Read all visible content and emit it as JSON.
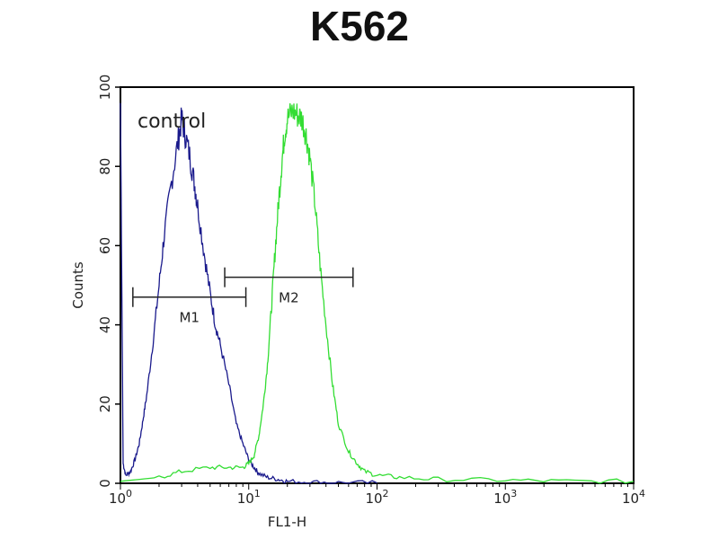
{
  "chart_data": {
    "type": "line",
    "title": "K562",
    "xlabel": "FL1-H",
    "ylabel": "Counts",
    "x_scale": "log",
    "xlim": [
      1,
      10000
    ],
    "ylim": [
      0,
      100
    ],
    "y_ticks": [
      0,
      20,
      40,
      60,
      80,
      100
    ],
    "y_tick_labels": [
      "0",
      "20",
      "40",
      "60",
      "80",
      "100"
    ],
    "x_ticks": [
      {
        "value": 1,
        "base": "10",
        "exp": "0"
      },
      {
        "value": 10,
        "base": "10",
        "exp": "1"
      },
      {
        "value": 100,
        "base": "10",
        "exp": "2"
      },
      {
        "value": 1000,
        "base": "10",
        "exp": "3"
      },
      {
        "value": 10000,
        "base": "10",
        "exp": "4"
      }
    ],
    "annotations": [
      {
        "text": "control"
      }
    ],
    "grid": false,
    "series": [
      {
        "color": "#1a1a8c",
        "x": [
          1.0,
          1.05,
          1.1,
          1.2,
          1.3,
          1.4,
          1.5,
          1.6,
          1.8,
          2.0,
          2.2,
          2.5,
          2.8,
          3.0,
          3.2,
          3.5,
          3.8,
          4.0,
          4.5,
          5.0,
          5.5,
          6.0,
          7.0,
          8.0,
          9.0,
          10.0,
          11.0,
          12.0,
          14.0,
          17.0,
          20.0,
          30.0,
          50.0,
          100.0
        ],
        "values": [
          96,
          5,
          2,
          3,
          6,
          10,
          16,
          22,
          36,
          50,
          63,
          76,
          86,
          92,
          88,
          82,
          75,
          70,
          58,
          48,
          40,
          35,
          25,
          15,
          10,
          6,
          4,
          2.5,
          1.5,
          1,
          0.5,
          0.3,
          0.2,
          0.1
        ]
      },
      {
        "color": "#33dd33",
        "x": [
          1.0,
          2.0,
          3.0,
          5.0,
          7.0,
          9.0,
          10.0,
          11.0,
          12.0,
          13.0,
          14.0,
          15.0,
          16.0,
          17.0,
          18.0,
          19.0,
          20.0,
          22.0,
          24.0,
          26.0,
          28.0,
          30.0,
          33.0,
          36.0,
          40.0,
          45.0,
          50.0,
          60.0,
          70.0,
          80.0,
          100.0,
          150.0,
          300.0,
          1000.0,
          3000.0,
          10000.0
        ],
        "values": [
          0.5,
          1.5,
          3,
          4,
          4,
          4,
          5,
          7,
          12,
          20,
          30,
          44,
          58,
          70,
          80,
          88,
          92,
          94,
          93,
          92,
          88,
          82,
          70,
          55,
          40,
          25,
          15,
          8,
          5,
          3,
          2,
          1.5,
          1,
          0.8,
          0.5,
          0.5
        ]
      }
    ],
    "markers": [
      {
        "label": "M1",
        "x_start": 1.25,
        "x_end": 9.5,
        "y": 47
      },
      {
        "label": "M2",
        "x_start": 6.5,
        "x_end": 65,
        "y": 52
      }
    ]
  }
}
